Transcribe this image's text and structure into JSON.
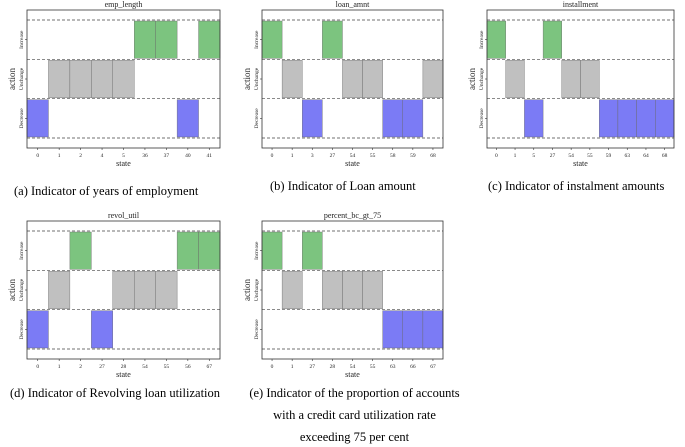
{
  "colors": {
    "Increase": "#7cc47f",
    "Unchange": "#c0c0c0",
    "Decrease": "#7b7bf5"
  },
  "captions": [
    [
      "(a) Indicator of years of employment"
    ],
    [
      "(b) Indicator of Loan amount"
    ],
    [
      "(c) Indicator of instalment amounts"
    ],
    [
      "(d) Indicator of Revolving loan utilization"
    ],
    [
      "(e) Indicator of the proportion of accounts",
      "with a credit card utilization rate",
      "exceeding 75 per cent"
    ]
  ],
  "chart_data": [
    {
      "type": "heatmap",
      "title": "emp_length",
      "xlabel": "state",
      "ylabel": "action",
      "actions": [
        "Increase",
        "Unchange",
        "Decrease"
      ],
      "states": [
        "0",
        "1",
        "2",
        "4",
        "5",
        "36",
        "37",
        "40",
        "41"
      ],
      "action_by_state": [
        "Decrease",
        "Unchange",
        "Unchange",
        "Unchange",
        "Unchange",
        "Increase",
        "Increase",
        "Decrease",
        "Increase"
      ]
    },
    {
      "type": "heatmap",
      "title": "loan_amnt",
      "xlabel": "state",
      "ylabel": "action",
      "actions": [
        "Increase",
        "Unchange",
        "Decrease"
      ],
      "states": [
        "0",
        "1",
        "3",
        "27",
        "54",
        "55",
        "58",
        "59",
        "68"
      ],
      "action_by_state": [
        "Increase",
        "Unchange",
        "Decrease",
        "Increase",
        "Unchange",
        "Unchange",
        "Decrease",
        "Decrease",
        "Unchange"
      ]
    },
    {
      "type": "heatmap",
      "title": "installment",
      "xlabel": "state",
      "ylabel": "action",
      "actions": [
        "Increase",
        "Unchange",
        "Decrease"
      ],
      "states": [
        "0",
        "1",
        "5",
        "27",
        "54",
        "55",
        "59",
        "63",
        "64",
        "68"
      ],
      "action_by_state": [
        "Increase",
        "Unchange",
        "Decrease",
        "Increase",
        "Unchange",
        "Unchange",
        "Decrease",
        "Decrease",
        "Decrease",
        "Decrease"
      ]
    },
    {
      "type": "heatmap",
      "title": "revol_util",
      "xlabel": "state",
      "ylabel": "action",
      "actions": [
        "Increase",
        "Unchange",
        "Decrease"
      ],
      "states": [
        "0",
        "1",
        "2",
        "27",
        "28",
        "54",
        "55",
        "56",
        "67"
      ],
      "action_by_state": [
        "Decrease",
        "Unchange",
        "Increase",
        "Decrease",
        "Unchange",
        "Unchange",
        "Unchange",
        "Increase",
        "Increase"
      ]
    },
    {
      "type": "heatmap",
      "title": "percent_bc_gt_75",
      "xlabel": "state",
      "ylabel": "action",
      "actions": [
        "Increase",
        "Unchange",
        "Decrease"
      ],
      "states": [
        "0",
        "1",
        "27",
        "28",
        "54",
        "55",
        "63",
        "66",
        "67"
      ],
      "action_by_state": [
        "Increase",
        "Unchange",
        "Increase",
        "Unchange",
        "Unchange",
        "Unchange",
        "Decrease",
        "Decrease",
        "Decrease"
      ]
    }
  ]
}
